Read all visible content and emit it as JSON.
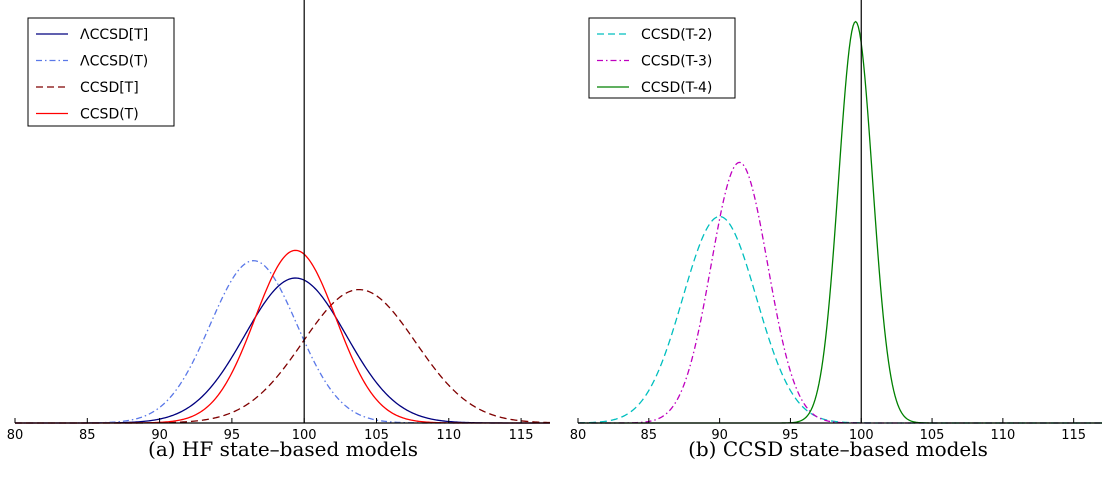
{
  "chart_data": [
    {
      "type": "line",
      "caption": "(a) HF state–based models",
      "xlim": [
        80,
        117
      ],
      "ylim": [
        0,
        1
      ],
      "x_ticks": [
        "80",
        "85",
        "90",
        "95",
        "100",
        "105",
        "110",
        "115"
      ],
      "x_tick_values": [
        80,
        85,
        90,
        95,
        100,
        105,
        110,
        115
      ],
      "reference_line_x": 100,
      "grid": false,
      "legend_position": "top-left",
      "series": [
        {
          "name": "ΛCCSD[T]",
          "style": "solid",
          "color": "#00007f",
          "mean": 99.4,
          "sd": 3.5,
          "peak": 0.351
        },
        {
          "name": "ΛCCSD(T)",
          "style": "dashdot",
          "color": "#5a78e8",
          "mean": 96.5,
          "sd": 3.0,
          "peak": 0.393
        },
        {
          "name": "CCSD[T]",
          "style": "dashed",
          "color": "#7f0000",
          "mean": 103.8,
          "sd": 3.9,
          "peak": 0.323
        },
        {
          "name": "CCSD(T)",
          "style": "solid",
          "color": "#ff0000",
          "mean": 99.4,
          "sd": 2.8,
          "peak": 0.418
        }
      ]
    },
    {
      "type": "line",
      "caption": "(b) CCSD state–based models",
      "xlim": [
        80,
        117
      ],
      "ylim": [
        0,
        1
      ],
      "x_ticks": [
        "80",
        "85",
        "90",
        "95",
        "100",
        "105",
        "110",
        "115"
      ],
      "x_tick_values": [
        80,
        85,
        90,
        95,
        100,
        105,
        110,
        115
      ],
      "reference_line_x": 100,
      "grid": false,
      "legend_position": "top-left",
      "series": [
        {
          "name": "CCSD(T-2)",
          "style": "dashed",
          "color": "#00bfbf",
          "mean": 90.0,
          "sd": 2.6,
          "peak": 0.5
        },
        {
          "name": "CCSD(T-3)",
          "style": "dashdot",
          "color": "#bf00bf",
          "mean": 91.4,
          "sd": 2.0,
          "peak": 0.631
        },
        {
          "name": "CCSD(T-4)",
          "style": "solid",
          "color": "#008000",
          "mean": 99.6,
          "sd": 1.2,
          "peak": 0.972
        }
      ]
    }
  ]
}
